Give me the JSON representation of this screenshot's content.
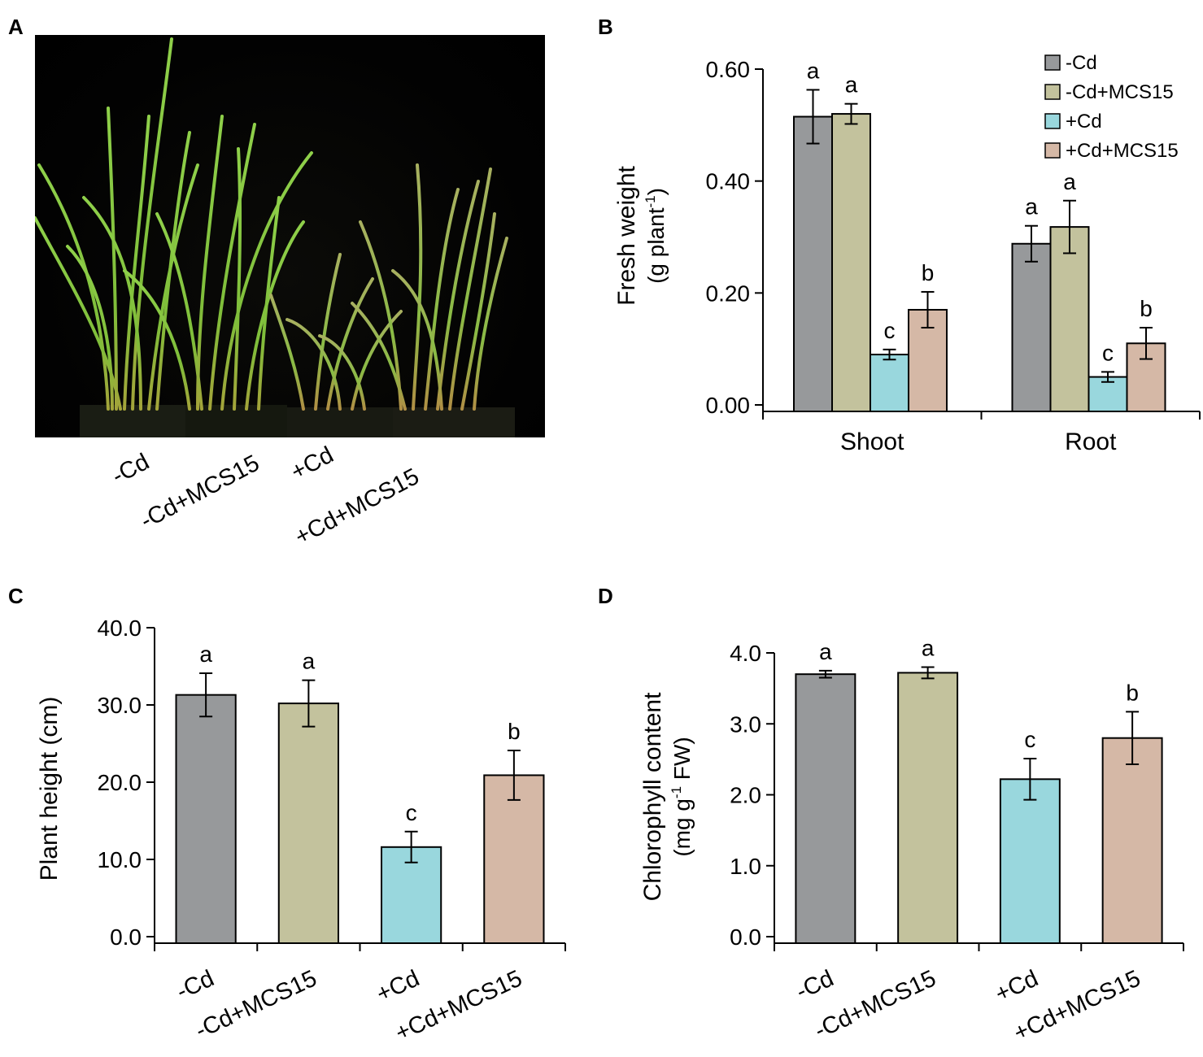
{
  "panels": {
    "a": {
      "letter": "A",
      "photo_description_icon": "rice-seedlings-photo",
      "treatment_labels": [
        "-Cd",
        "-Cd+MCS15",
        "+Cd",
        "+Cd+MCS15"
      ]
    },
    "b": {
      "letter": "B"
    },
    "c": {
      "letter": "C"
    },
    "d": {
      "letter": "D"
    }
  },
  "colors": {
    "minus_cd": "#97999b",
    "minus_cd_mcs15": "#c3c29d",
    "plus_cd": "#99d7dd",
    "plus_cd_mcs15": "#d5b8a6"
  },
  "chart_data": [
    {
      "id": "B",
      "type": "bar",
      "title": "",
      "ylabel_line1": "Fresh weight",
      "ylabel_line2_prefix": "(g plant",
      "ylabel_line2_sup": "-1",
      "ylabel_line2_suffix": ")",
      "xlabel": "",
      "categories": [
        "Shoot",
        "Root"
      ],
      "ylim": [
        0,
        0.6
      ],
      "yticks": [
        "0.00",
        "0.20",
        "0.40",
        "0.60"
      ],
      "ytick_values": [
        0,
        0.2,
        0.4,
        0.6
      ],
      "legend": [
        "-Cd",
        "-Cd+MCS15",
        "+Cd",
        "+Cd+MCS15"
      ],
      "legend_position": "top-right",
      "series": [
        {
          "name": "-Cd",
          "values": [
            0.515,
            0.288
          ],
          "errors": [
            0.048,
            0.032
          ],
          "letters": [
            "a",
            "a"
          ]
        },
        {
          "name": "-Cd+MCS15",
          "values": [
            0.52,
            0.318
          ],
          "errors": [
            0.018,
            0.047
          ],
          "letters": [
            "a",
            "a"
          ]
        },
        {
          "name": "+Cd",
          "values": [
            0.09,
            0.05
          ],
          "errors": [
            0.009,
            0.009
          ],
          "letters": [
            "c",
            "c"
          ]
        },
        {
          "name": "+Cd+MCS15",
          "values": [
            0.17,
            0.11
          ],
          "errors": [
            0.032,
            0.028
          ],
          "letters": [
            "b",
            "b"
          ]
        }
      ]
    },
    {
      "id": "C",
      "type": "bar",
      "title": "",
      "ylabel": "Plant height (cm)",
      "xlabel": "",
      "categories": [
        "-Cd",
        "-Cd+MCS15",
        "+Cd",
        "+Cd+MCS15"
      ],
      "ylim": [
        0,
        40
      ],
      "yticks": [
        "0.0",
        "10.0",
        "20.0",
        "30.0",
        "40.0"
      ],
      "ytick_values": [
        0,
        10,
        20,
        30,
        40
      ],
      "values": [
        31.3,
        30.2,
        11.6,
        20.9
      ],
      "errors": [
        2.8,
        3.0,
        2.0,
        3.2
      ],
      "letters": [
        "a",
        "a",
        "c",
        "b"
      ]
    },
    {
      "id": "D",
      "type": "bar",
      "title": "",
      "ylabel_line1": "Chlorophyll content",
      "ylabel_line2_prefix": "(mg g",
      "ylabel_line2_sup": "-1",
      "ylabel_line2_suffix": " FW)",
      "xlabel": "",
      "categories": [
        "-Cd",
        "-Cd+MCS15",
        "+Cd",
        "+Cd+MCS15"
      ],
      "ylim": [
        0,
        4.0
      ],
      "yticks": [
        "0.0",
        "1.0",
        "2.0",
        "3.0",
        "4.0"
      ],
      "ytick_values": [
        0,
        1,
        2,
        3,
        4
      ],
      "values": [
        3.7,
        3.72,
        2.22,
        2.8
      ],
      "errors": [
        0.05,
        0.08,
        0.29,
        0.37
      ],
      "letters": [
        "a",
        "a",
        "c",
        "b"
      ]
    }
  ]
}
